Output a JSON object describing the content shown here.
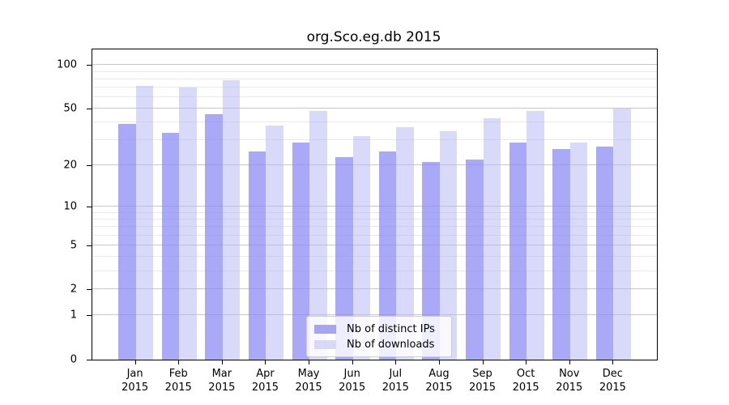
{
  "title": "org.Sco.eg.db 2015",
  "chart_data": {
    "type": "bar",
    "title": "org.Sco.eg.db 2015",
    "categories": [
      "Jan",
      "Feb",
      "Mar",
      "Apr",
      "May",
      "Jun",
      "Jul",
      "Aug",
      "Sep",
      "Oct",
      "Nov",
      "Dec"
    ],
    "x_tick_second_line": "2015",
    "series": [
      {
        "name": "Nb of distinct IPs",
        "values": [
          39,
          34,
          46,
          25,
          29,
          23,
          25,
          21,
          22,
          29,
          26,
          27
        ],
        "color": "rgba(136,136,244,0.72)",
        "swatch": "#a5a5f2"
      },
      {
        "name": "Nb of downloads",
        "values": [
          72,
          70,
          79,
          38,
          48,
          32,
          37,
          35,
          43,
          48,
          29,
          50
        ],
        "color": "rgba(179,179,245,0.5)",
        "swatch": "#d8d8f8"
      }
    ],
    "y_scale": "log1p",
    "y_max": 128,
    "y_ticks": [
      0,
      1,
      2,
      5,
      10,
      20,
      50,
      100
    ],
    "y_minor_gridlines": [
      3,
      4,
      6,
      7,
      8,
      9,
      30,
      40,
      60,
      70,
      80,
      90
    ],
    "grid": true,
    "legend_position": "bottom-center",
    "colors": {
      "major_gridline": "#c9c9c9",
      "minor_gridline": "#e9e9e9",
      "axis": "#000000"
    }
  }
}
